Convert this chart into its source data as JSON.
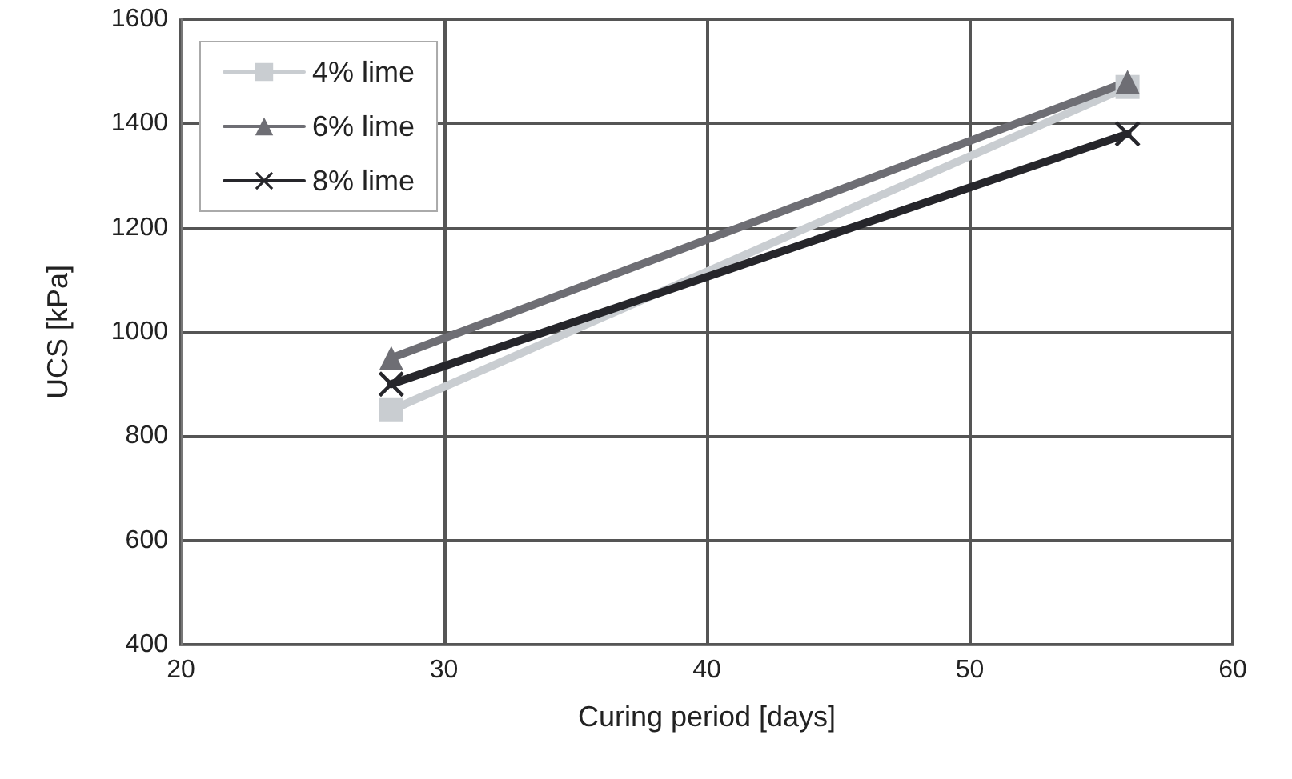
{
  "chart_data": {
    "type": "line",
    "xlabel": "Curing period [days]",
    "ylabel": "UCS [kPa]",
    "x": [
      28,
      56
    ],
    "series": [
      {
        "name": "4% lime",
        "color": "#c9cdd1",
        "values": [
          850,
          1470
        ],
        "marker": "square"
      },
      {
        "name": "6% lime",
        "color": "#6e6e74",
        "values": [
          950,
          1480
        ],
        "marker": "triangle"
      },
      {
        "name": "8% lime",
        "color": "#26262b",
        "values": [
          900,
          1380
        ],
        "marker": "cross"
      }
    ],
    "xlim": [
      20,
      60
    ],
    "xticks": [
      20,
      30,
      40,
      50,
      60
    ],
    "ylim": [
      400,
      1600
    ],
    "yticks": [
      400,
      600,
      800,
      1000,
      1200,
      1400,
      1600
    ],
    "grid": true,
    "legend": "top left",
    "line_style": "solid"
  }
}
